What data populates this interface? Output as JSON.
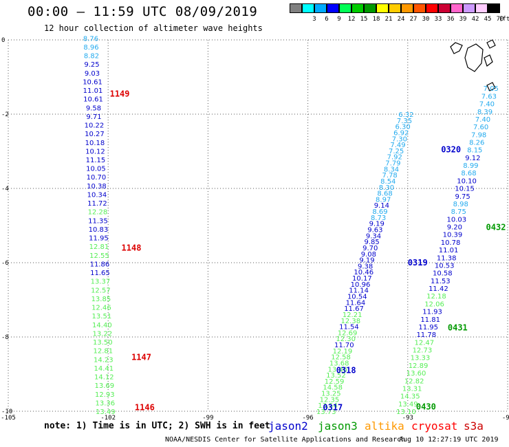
{
  "header": {
    "title": "00:00 – 11:59 UTC 08/09/2019",
    "subtitle": "12 hour collection of altimeter wave heights"
  },
  "colorbar": {
    "unit": "(ft)",
    "bins": [
      {
        "label": "",
        "color": "#808080"
      },
      {
        "label": "3",
        "color": "#00ffff"
      },
      {
        "label": "6",
        "color": "#00aaff"
      },
      {
        "label": "9",
        "color": "#0000ff"
      },
      {
        "label": "12",
        "color": "#00ff55"
      },
      {
        "label": "15",
        "color": "#00cc00"
      },
      {
        "label": "18",
        "color": "#009900"
      },
      {
        "label": "21",
        "color": "#ffff00"
      },
      {
        "label": "24",
        "color": "#ffcc00"
      },
      {
        "label": "27",
        "color": "#ff9900"
      },
      {
        "label": "30",
        "color": "#ff5500"
      },
      {
        "label": "33",
        "color": "#ff0000"
      },
      {
        "label": "36",
        "color": "#cc0033"
      },
      {
        "label": "39",
        "color": "#ff66cc"
      },
      {
        "label": "42",
        "color": "#cc99ff"
      },
      {
        "label": "45",
        "color": "#ffccff"
      },
      {
        "label": "70",
        "color": "#000000"
      }
    ]
  },
  "notes": {
    "note": "note: 1) Time is in UTC; 2) SWH is in feet",
    "legend": [
      {
        "label": "jason2",
        "color": "#0000cc"
      },
      {
        "label": "jason3",
        "color": "#009900"
      },
      {
        "label": "altika",
        "color": "#ff9900"
      },
      {
        "label": "cryosat",
        "color": "#ff0000"
      },
      {
        "label": "s3a",
        "color": "#cc0000"
      }
    ],
    "source": "NOAA/NESDIS Center for Satellite Applications and Research",
    "timestamp": "Aug 10 12:27:19 UTC 2019"
  },
  "chart_data": {
    "type": "scatter",
    "xlim": [
      -105,
      -90
    ],
    "ylim": [
      -10,
      0
    ],
    "xticks": [
      {
        "value": -105,
        "label": "-105"
      },
      {
        "value": -102,
        "label": "-102"
      },
      {
        "value": -99,
        "label": "-99"
      },
      {
        "value": -96,
        "label": "-96"
      },
      {
        "value": -93,
        "label": "-93"
      },
      {
        "value": -90,
        "label": "-90"
      }
    ],
    "yticks": [
      {
        "value": 0,
        "label": "0"
      },
      {
        "value": -2,
        "label": "-2"
      },
      {
        "value": -4,
        "label": "-4"
      },
      {
        "value": -6,
        "label": "-6"
      },
      {
        "value": -8,
        "label": "-8"
      },
      {
        "value": -10,
        "label": "-10"
      }
    ],
    "grid": "dotted",
    "colors": {
      "c6": "#22aaee",
      "c9": "#0000cc",
      "c12": "#55ee55",
      "c15": "#00aa00"
    },
    "tracks": [
      {
        "name": "track-a",
        "lon_start": -102.52,
        "lat_start": 0.05,
        "lon_end": -102.08,
        "lat_end": -10.0,
        "values": [
          {
            "v": "8.76",
            "c": "c6"
          },
          {
            "v": "8.96",
            "c": "c6"
          },
          {
            "v": "8.82",
            "c": "c6"
          },
          {
            "v": "9.25",
            "c": "c9"
          },
          {
            "v": "9.03",
            "c": "c9"
          },
          {
            "v": "10.61",
            "c": "c9"
          },
          {
            "v": "11.01",
            "c": "c9"
          },
          {
            "v": "10.61",
            "c": "c9"
          },
          {
            "v": "9.58",
            "c": "c9"
          },
          {
            "v": "9.71",
            "c": "c9"
          },
          {
            "v": "10.22",
            "c": "c9"
          },
          {
            "v": "10.27",
            "c": "c9"
          },
          {
            "v": "10.18",
            "c": "c9"
          },
          {
            "v": "10.12",
            "c": "c9"
          },
          {
            "v": "11.15",
            "c": "c9"
          },
          {
            "v": "10.05",
            "c": "c9"
          },
          {
            "v": "10.70",
            "c": "c9"
          },
          {
            "v": "10.38",
            "c": "c9"
          },
          {
            "v": "10.34",
            "c": "c9"
          },
          {
            "v": "11.72",
            "c": "c9"
          },
          {
            "v": "12.28",
            "c": "c12"
          },
          {
            "v": "11.35",
            "c": "c9"
          },
          {
            "v": "10.83",
            "c": "c9"
          },
          {
            "v": "11.95",
            "c": "c9"
          },
          {
            "v": "12.81",
            "c": "c12"
          },
          {
            "v": "12.55",
            "c": "c12"
          },
          {
            "v": "11.86",
            "c": "c9"
          },
          {
            "v": "11.65",
            "c": "c9"
          },
          {
            "v": "13.37",
            "c": "c12"
          },
          {
            "v": "12.57",
            "c": "c12"
          },
          {
            "v": "13.85",
            "c": "c12"
          },
          {
            "v": "12.46",
            "c": "c12"
          },
          {
            "v": "13.51",
            "c": "c12"
          },
          {
            "v": "14.40",
            "c": "c12"
          },
          {
            "v": "13.22",
            "c": "c12"
          },
          {
            "v": "13.50",
            "c": "c12"
          },
          {
            "v": "12.81",
            "c": "c12"
          },
          {
            "v": "14.23",
            "c": "c12"
          },
          {
            "v": "14.41",
            "c": "c12"
          },
          {
            "v": "14.12",
            "c": "c12"
          },
          {
            "v": "13.69",
            "c": "c12"
          },
          {
            "v": "12.93",
            "c": "c12"
          },
          {
            "v": "13.36",
            "c": "c12"
          },
          {
            "v": "13.49",
            "c": "c12"
          }
        ]
      },
      {
        "name": "track-b",
        "lon_start": -95.45,
        "lat_start": -10.0,
        "lon_end": -93.05,
        "lat_end": -2.0,
        "values": [
          {
            "v": "13.73",
            "c": "c12"
          },
          {
            "v": "13.54",
            "c": "c12"
          },
          {
            "v": "12.35",
            "c": "c12"
          },
          {
            "v": "13.25",
            "c": "c12"
          },
          {
            "v": "14.58",
            "c": "c12"
          },
          {
            "v": "12.59",
            "c": "c12"
          },
          {
            "v": "13.52",
            "c": "c12"
          },
          {
            "v": "13.46",
            "c": "c12"
          },
          {
            "v": "13.68",
            "c": "c12"
          },
          {
            "v": "12.58",
            "c": "c12"
          },
          {
            "v": "12.19",
            "c": "c12"
          },
          {
            "v": "11.70",
            "c": "c9"
          },
          {
            "v": "12.30",
            "c": "c12"
          },
          {
            "v": "12.69",
            "c": "c12"
          },
          {
            "v": "11.54",
            "c": "c9"
          },
          {
            "v": "12.38",
            "c": "c12"
          },
          {
            "v": "12.21",
            "c": "c12"
          },
          {
            "v": "11.67",
            "c": "c9"
          },
          {
            "v": "11.64",
            "c": "c9"
          },
          {
            "v": "10.54",
            "c": "c9"
          },
          {
            "v": "11.14",
            "c": "c9"
          },
          {
            "v": "10.96",
            "c": "c9"
          },
          {
            "v": "10.17",
            "c": "c9"
          },
          {
            "v": "10.46",
            "c": "c9"
          },
          {
            "v": "9.38",
            "c": "c9"
          },
          {
            "v": "9.19",
            "c": "c9"
          },
          {
            "v": "9.08",
            "c": "c9"
          },
          {
            "v": "9.70",
            "c": "c9"
          },
          {
            "v": "9.85",
            "c": "c9"
          },
          {
            "v": "9.34",
            "c": "c9"
          },
          {
            "v": "9.63",
            "c": "c9"
          },
          {
            "v": "9.19",
            "c": "c9"
          },
          {
            "v": "8.73",
            "c": "c6"
          },
          {
            "v": "8.69",
            "c": "c6"
          },
          {
            "v": "9.14",
            "c": "c9"
          },
          {
            "v": "8.97",
            "c": "c6"
          },
          {
            "v": "8.68",
            "c": "c6"
          },
          {
            "v": "8.30",
            "c": "c6"
          },
          {
            "v": "8.54",
            "c": "c6"
          },
          {
            "v": "7.78",
            "c": "c6"
          },
          {
            "v": "8.34",
            "c": "c6"
          },
          {
            "v": "7.79",
            "c": "c6"
          },
          {
            "v": "7.92",
            "c": "c6"
          },
          {
            "v": "7.25",
            "c": "c6"
          },
          {
            "v": "7.49",
            "c": "c6"
          },
          {
            "v": "7.30",
            "c": "c6"
          },
          {
            "v": "6.92",
            "c": "c6"
          },
          {
            "v": "6.30",
            "c": "c6"
          },
          {
            "v": "7.35",
            "c": "c6"
          },
          {
            "v": "6.32",
            "c": "c6"
          }
        ]
      },
      {
        "name": "track-c",
        "lon_start": -93.05,
        "lat_start": -10.0,
        "lon_end": -90.5,
        "lat_end": -1.3,
        "values": [
          {
            "v": "13.10",
            "c": "c12"
          },
          {
            "v": "13.49",
            "c": "c12"
          },
          {
            "v": "14.35",
            "c": "c12"
          },
          {
            "v": "13.31",
            "c": "c12"
          },
          {
            "v": "12.82",
            "c": "c12"
          },
          {
            "v": "13.60",
            "c": "c12"
          },
          {
            "v": "12.89",
            "c": "c12"
          },
          {
            "v": "13.33",
            "c": "c12"
          },
          {
            "v": "12.73",
            "c": "c12"
          },
          {
            "v": "12.47",
            "c": "c12"
          },
          {
            "v": "11.78",
            "c": "c9"
          },
          {
            "v": "11.95",
            "c": "c9"
          },
          {
            "v": "11.81",
            "c": "c9"
          },
          {
            "v": "11.93",
            "c": "c9"
          },
          {
            "v": "12.06",
            "c": "c12"
          },
          {
            "v": "12.18",
            "c": "c12"
          },
          {
            "v": "11.42",
            "c": "c9"
          },
          {
            "v": "11.53",
            "c": "c9"
          },
          {
            "v": "10.58",
            "c": "c9"
          },
          {
            "v": "10.53",
            "c": "c9"
          },
          {
            "v": "11.38",
            "c": "c9"
          },
          {
            "v": "11.01",
            "c": "c9"
          },
          {
            "v": "10.78",
            "c": "c9"
          },
          {
            "v": "10.39",
            "c": "c9"
          },
          {
            "v": "9.20",
            "c": "c9"
          },
          {
            "v": "10.03",
            "c": "c9"
          },
          {
            "v": "8.75",
            "c": "c6"
          },
          {
            "v": "8.98",
            "c": "c6"
          },
          {
            "v": "9.75",
            "c": "c9"
          },
          {
            "v": "10.15",
            "c": "c9"
          },
          {
            "v": "10.10",
            "c": "c9"
          },
          {
            "v": "8.68",
            "c": "c6"
          },
          {
            "v": "8.99",
            "c": "c6"
          },
          {
            "v": "9.12",
            "c": "c9"
          },
          {
            "v": "8.15",
            "c": "c6"
          },
          {
            "v": "8.26",
            "c": "c6"
          },
          {
            "v": "7.98",
            "c": "c6"
          },
          {
            "v": "7.60",
            "c": "c6"
          },
          {
            "v": "7.40",
            "c": "c6"
          },
          {
            "v": "8.39",
            "c": "c6"
          },
          {
            "v": "7.40",
            "c": "c6"
          },
          {
            "v": "7.63",
            "c": "c6"
          },
          {
            "v": "7.05",
            "c": "c6"
          }
        ]
      }
    ],
    "time_labels": [
      {
        "text": "1149",
        "lon": -101.95,
        "lat": -1.45,
        "color": "#dd0000"
      },
      {
        "text": "1148",
        "lon": -101.6,
        "lat": -5.6,
        "color": "#dd0000"
      },
      {
        "text": "1147",
        "lon": -101.3,
        "lat": -8.55,
        "color": "#dd0000"
      },
      {
        "text": "1146",
        "lon": -101.2,
        "lat": -9.9,
        "color": "#dd0000"
      },
      {
        "text": "0320",
        "lon": -92.0,
        "lat": -2.95,
        "color": "#0000cc"
      },
      {
        "text": "0319",
        "lon": -93.0,
        "lat": -6.0,
        "color": "#0000cc"
      },
      {
        "text": "0318",
        "lon": -95.15,
        "lat": -8.9,
        "color": "#0000cc"
      },
      {
        "text": "0317",
        "lon": -95.55,
        "lat": -9.9,
        "color": "#0000cc"
      },
      {
        "text": "0432",
        "lon": -90.65,
        "lat": -5.05,
        "color": "#009900"
      },
      {
        "text": "0431",
        "lon": -91.8,
        "lat": -7.75,
        "color": "#009900"
      },
      {
        "text": "0430",
        "lon": -92.75,
        "lat": -9.88,
        "color": "#009900"
      }
    ]
  }
}
